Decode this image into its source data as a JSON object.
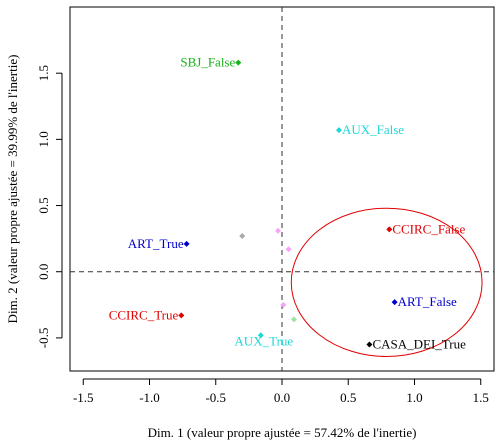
{
  "chart_data": {
    "type": "scatter",
    "xlabel": "Dim. 1 (valeur propre ajustée = 57.42% de l'inertie)",
    "ylabel": "Dim. 2 (valeur propre ajustée = 39.99% de l'inertie)",
    "xlim": [
      -1.6,
      1.6
    ],
    "ylim": [
      -0.75,
      2.0
    ],
    "x_ticks": [
      -1.5,
      -1.0,
      -0.5,
      0.0,
      0.5,
      1.0,
      1.5
    ],
    "x_tick_labels": [
      "-1.5",
      "-1.0",
      "-0.5",
      "0.0",
      "0.5",
      "1.0",
      "1.5"
    ],
    "y_ticks": [
      -0.5,
      0.0,
      0.5,
      1.0,
      1.5
    ],
    "y_tick_labels": [
      "-0.5",
      "0.0",
      "0.5",
      "1.0",
      "1.5"
    ],
    "grid": false,
    "reference_lines": {
      "x": 0,
      "y": 0,
      "style": "dashed"
    },
    "points": [
      {
        "label": "SBJ_False",
        "x": -0.33,
        "y": 1.58,
        "color": "#17b317"
      },
      {
        "label": "AUX_False",
        "x": 0.43,
        "y": 1.07,
        "color": "#22d6d6"
      },
      {
        "label": "ART_True",
        "x": -0.72,
        "y": 0.21,
        "color": "#0000cc"
      },
      {
        "label": "CCIRC_False",
        "x": 0.81,
        "y": 0.32,
        "color": "#e00000"
      },
      {
        "label": "CCIRC_True",
        "x": -0.76,
        "y": -0.33,
        "color": "#e00000"
      },
      {
        "label": "ART_False",
        "x": 0.85,
        "y": -0.23,
        "color": "#0000cc"
      },
      {
        "label": "AUX_True",
        "x": -0.16,
        "y": -0.48,
        "color": "#22d6d6"
      },
      {
        "label": "CASA_DEI_True",
        "x": 0.66,
        "y": -0.55,
        "color": "#000000"
      },
      {
        "label": "",
        "x": -0.3,
        "y": 0.27,
        "color": "#aaaaaa"
      },
      {
        "label": "",
        "x": -0.03,
        "y": 0.31,
        "color": "#f4a6f4"
      },
      {
        "label": "",
        "x": 0.05,
        "y": 0.17,
        "color": "#f4a6f4"
      },
      {
        "label": "",
        "x": 0.01,
        "y": -0.25,
        "color": "#f4a6f4"
      },
      {
        "label": "",
        "x": 0.09,
        "y": -0.36,
        "color": "#a3e0a3"
      }
    ],
    "ellipse": {
      "cx": 0.79,
      "cy": -0.08,
      "rx": 0.72,
      "ry": 0.56,
      "color": "#e00000"
    }
  }
}
